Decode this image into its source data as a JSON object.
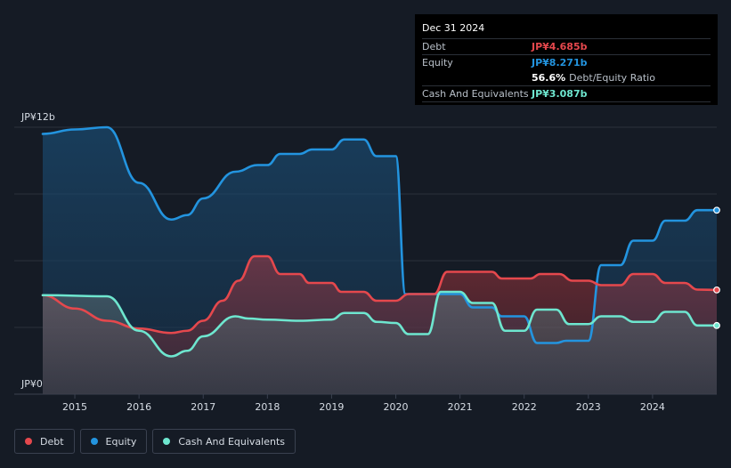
{
  "tooltip": {
    "date": "Dec 31 2024",
    "debt_label": "Debt",
    "debt_value": "JP¥4.685b",
    "equity_label": "Equity",
    "equity_value": "JP¥8.271b",
    "ratio_value": "56.6%",
    "ratio_label": "Debt/Equity Ratio",
    "cash_label": "Cash And Equivalents",
    "cash_value": "JP¥3.087b"
  },
  "legend": {
    "debt": "Debt",
    "equity": "Equity",
    "cash": "Cash And Equivalents"
  },
  "colors": {
    "debt": "#e5484d",
    "equity": "#2394df",
    "cash": "#6ee6cf",
    "background": "#151b25"
  },
  "chart_data": {
    "type": "area",
    "y_tick_labels": [
      "JP¥0",
      "JP¥12b"
    ],
    "ylim": [
      0,
      12
    ],
    "xlim": [
      2014.5,
      2025.0
    ],
    "x_ticks": [
      2015,
      2016,
      2017,
      2018,
      2019,
      2020,
      2021,
      2022,
      2023,
      2024
    ],
    "grid": true,
    "legend_position": "bottom-left",
    "series": [
      {
        "name": "Debt",
        "color": "#e5484d",
        "points": [
          [
            2014.5,
            4.45
          ],
          [
            2015.0,
            3.85
          ],
          [
            2015.5,
            3.3
          ],
          [
            2016.0,
            2.95
          ],
          [
            2016.5,
            2.75
          ],
          [
            2016.75,
            2.85
          ],
          [
            2017.0,
            3.3
          ],
          [
            2017.3,
            4.2
          ],
          [
            2017.55,
            5.1
          ],
          [
            2017.8,
            6.2
          ],
          [
            2018.0,
            6.2
          ],
          [
            2018.2,
            5.4
          ],
          [
            2018.5,
            5.4
          ],
          [
            2018.65,
            5.0
          ],
          [
            2019.0,
            5.0
          ],
          [
            2019.15,
            4.6
          ],
          [
            2019.5,
            4.6
          ],
          [
            2019.7,
            4.2
          ],
          [
            2020.0,
            4.2
          ],
          [
            2020.2,
            4.5
          ],
          [
            2020.6,
            4.5
          ],
          [
            2020.8,
            5.5
          ],
          [
            2021.5,
            5.5
          ],
          [
            2021.65,
            5.2
          ],
          [
            2022.1,
            5.2
          ],
          [
            2022.25,
            5.4
          ],
          [
            2022.55,
            5.4
          ],
          [
            2022.75,
            5.1
          ],
          [
            2023.0,
            5.1
          ],
          [
            2023.2,
            4.9
          ],
          [
            2023.5,
            4.9
          ],
          [
            2023.7,
            5.4
          ],
          [
            2024.0,
            5.4
          ],
          [
            2024.2,
            5.0
          ],
          [
            2024.5,
            5.0
          ],
          [
            2024.7,
            4.7
          ],
          [
            2025.0,
            4.685
          ]
        ]
      },
      {
        "name": "Equity",
        "color": "#2394df",
        "points": [
          [
            2014.5,
            11.7
          ],
          [
            2015.0,
            11.9
          ],
          [
            2015.5,
            12.0
          ],
          [
            2016.0,
            9.5
          ],
          [
            2016.5,
            7.85
          ],
          [
            2016.75,
            8.05
          ],
          [
            2017.0,
            8.8
          ],
          [
            2017.5,
            10.0
          ],
          [
            2017.85,
            10.3
          ],
          [
            2018.0,
            10.3
          ],
          [
            2018.2,
            10.8
          ],
          [
            2018.5,
            10.8
          ],
          [
            2018.7,
            11.0
          ],
          [
            2019.0,
            11.0
          ],
          [
            2019.2,
            11.45
          ],
          [
            2019.5,
            11.45
          ],
          [
            2019.7,
            10.7
          ],
          [
            2020.0,
            10.7
          ],
          [
            2020.15,
            4.5
          ],
          [
            2021.0,
            4.5
          ],
          [
            2021.2,
            3.9
          ],
          [
            2021.5,
            3.9
          ],
          [
            2021.65,
            3.5
          ],
          [
            2022.0,
            3.5
          ],
          [
            2022.2,
            2.3
          ],
          [
            2022.5,
            2.3
          ],
          [
            2022.65,
            2.4
          ],
          [
            2023.0,
            2.4
          ],
          [
            2023.2,
            5.8
          ],
          [
            2023.5,
            5.8
          ],
          [
            2023.7,
            6.9
          ],
          [
            2024.0,
            6.9
          ],
          [
            2024.2,
            7.8
          ],
          [
            2024.5,
            7.8
          ],
          [
            2024.7,
            8.271
          ],
          [
            2025.0,
            8.271
          ]
        ]
      },
      {
        "name": "Cash And Equivalents",
        "color": "#6ee6cf",
        "points": [
          [
            2014.5,
            4.45
          ],
          [
            2015.5,
            4.4
          ],
          [
            2016.0,
            2.85
          ],
          [
            2016.5,
            1.7
          ],
          [
            2016.75,
            1.95
          ],
          [
            2017.0,
            2.6
          ],
          [
            2017.5,
            3.5
          ],
          [
            2017.7,
            3.4
          ],
          [
            2018.0,
            3.35
          ],
          [
            2018.5,
            3.3
          ],
          [
            2019.0,
            3.35
          ],
          [
            2019.2,
            3.65
          ],
          [
            2019.5,
            3.65
          ],
          [
            2019.7,
            3.25
          ],
          [
            2020.0,
            3.2
          ],
          [
            2020.2,
            2.7
          ],
          [
            2020.5,
            2.7
          ],
          [
            2020.7,
            4.6
          ],
          [
            2021.0,
            4.6
          ],
          [
            2021.2,
            4.1
          ],
          [
            2021.5,
            4.1
          ],
          [
            2021.7,
            2.85
          ],
          [
            2022.0,
            2.85
          ],
          [
            2022.2,
            3.8
          ],
          [
            2022.5,
            3.8
          ],
          [
            2022.7,
            3.15
          ],
          [
            2023.0,
            3.15
          ],
          [
            2023.2,
            3.5
          ],
          [
            2023.5,
            3.5
          ],
          [
            2023.7,
            3.25
          ],
          [
            2024.0,
            3.25
          ],
          [
            2024.2,
            3.7
          ],
          [
            2024.5,
            3.7
          ],
          [
            2024.7,
            3.087
          ],
          [
            2025.0,
            3.087
          ]
        ]
      }
    ]
  }
}
